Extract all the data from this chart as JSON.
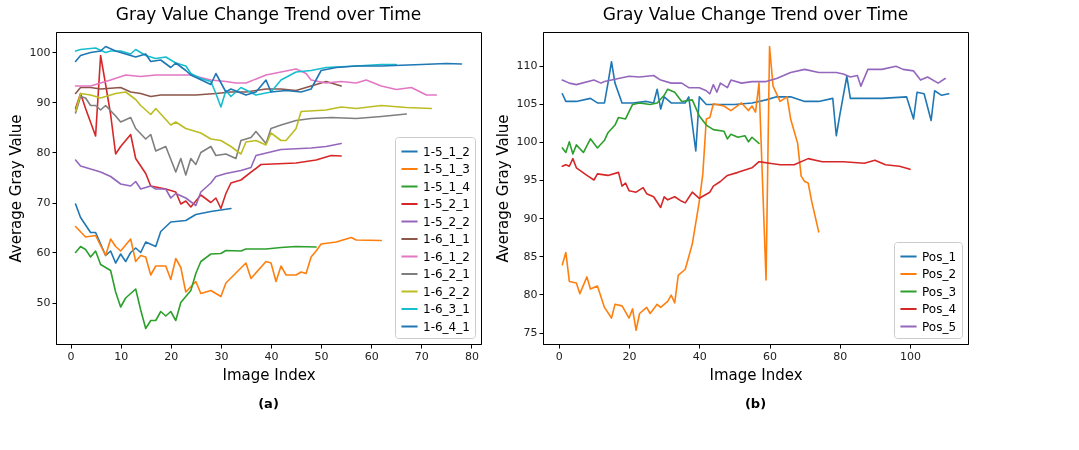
{
  "chart_data": [
    {
      "type": "line",
      "title": "Gray Value Change Trend over Time",
      "xlabel": "Image Index",
      "ylabel": "Average Gray Value",
      "annotations": [
        "(a)"
      ],
      "legend": "bottom right",
      "xlim": [
        -2.9,
        81.9
      ],
      "xticks": [
        0,
        10,
        20,
        30,
        40,
        50,
        60,
        70,
        80
      ],
      "ylim": [
        41.7,
        104.1
      ],
      "yticks": [
        50,
        60,
        70,
        80,
        90,
        100
      ],
      "series": [
        {
          "name": "1-5_1_2",
          "color": "#1f77b4",
          "x": [
            1,
            2,
            4,
            5,
            7,
            8,
            9,
            10,
            11,
            12,
            13,
            14,
            15,
            17,
            18,
            20,
            23,
            25,
            28,
            32
          ],
          "values": [
            69.7,
            67.0,
            64.0,
            64.0,
            59.4,
            60.3,
            57.9,
            59.7,
            58.2,
            60.0,
            60.9,
            60.0,
            62.1,
            61.2,
            64.2,
            66.1,
            66.4,
            67.6,
            68.2,
            68.8
          ]
        },
        {
          "name": "1-5_1_3",
          "color": "#ff7f0e",
          "x": [
            1,
            3,
            5,
            7,
            8,
            9,
            10,
            12,
            13,
            14,
            15,
            16,
            17,
            19,
            20,
            21,
            22,
            23,
            25,
            26,
            28,
            30,
            31,
            35,
            36,
            39,
            40,
            41,
            42,
            43,
            45,
            46,
            47,
            48,
            49,
            50,
            53,
            56,
            57,
            62
          ],
          "values": [
            65.2,
            63.1,
            63.4,
            59.4,
            62.7,
            61.2,
            60.3,
            62.7,
            58.2,
            59.4,
            59.1,
            55.5,
            57.3,
            57.3,
            54.6,
            58.8,
            57.0,
            52.1,
            54.2,
            51.8,
            52.4,
            51.2,
            53.9,
            57.9,
            54.8,
            58.2,
            57.9,
            54.2,
            57.3,
            55.5,
            55.5,
            56.1,
            55.8,
            59.1,
            60.3,
            61.7,
            62.1,
            63.0,
            62.5,
            62.4
          ]
        },
        {
          "name": "1-5_1_4",
          "color": "#2ca02c",
          "x": [
            1,
            2,
            3,
            4,
            5,
            6,
            8,
            9,
            10,
            11,
            13,
            14,
            15,
            16,
            17,
            18,
            19,
            20,
            21,
            22,
            24,
            25,
            26,
            28,
            30,
            31,
            34,
            35,
            39,
            42,
            45,
            49
          ],
          "values": [
            60.0,
            61.2,
            60.6,
            59.1,
            60.3,
            57.6,
            56.4,
            52.1,
            49.1,
            50.9,
            52.7,
            48.5,
            44.8,
            46.4,
            46.4,
            48.2,
            47.3,
            48.2,
            46.4,
            50.0,
            52.4,
            55.8,
            58.2,
            59.7,
            59.8,
            60.4,
            60.3,
            60.7,
            60.7,
            61.0,
            61.2,
            61.1
          ]
        },
        {
          "name": "1-5_2_1",
          "color": "#d62728",
          "x": [
            1,
            2,
            3,
            5,
            6,
            7,
            8,
            9,
            10,
            12,
            13,
            15,
            16,
            19,
            21,
            22,
            23,
            24,
            26,
            28,
            29,
            30,
            31,
            32,
            34,
            38,
            45,
            49,
            52,
            54
          ],
          "values": [
            88.8,
            91.8,
            88.8,
            83.3,
            99.4,
            93.6,
            87.6,
            79.7,
            81.2,
            83.6,
            78.8,
            75.8,
            73.3,
            72.7,
            72.1,
            69.7,
            70.3,
            69.1,
            71.5,
            70.0,
            70.9,
            68.8,
            71.8,
            73.9,
            74.5,
            77.6,
            77.9,
            78.5,
            79.4,
            79.3
          ]
        },
        {
          "name": "1-5_2_2",
          "color": "#9467bd",
          "x": [
            1,
            2,
            4,
            6,
            8,
            10,
            12,
            13,
            14,
            16,
            17,
            19,
            20,
            21,
            23,
            25,
            26,
            28,
            29,
            31,
            34,
            36,
            37,
            42,
            48,
            51,
            54
          ],
          "values": [
            78.5,
            77.3,
            76.7,
            76.1,
            75.2,
            73.7,
            73.3,
            74.2,
            72.7,
            73.3,
            72.7,
            72.7,
            70.9,
            71.8,
            70.9,
            69.4,
            72.1,
            73.9,
            75.2,
            75.8,
            76.4,
            77.0,
            79.4,
            80.6,
            80.9,
            81.2,
            81.8
          ]
        },
        {
          "name": "1-6_1_1",
          "color": "#8c564b",
          "x": [
            1,
            2,
            4,
            6,
            10,
            12,
            14,
            16,
            18,
            20,
            25,
            29,
            32,
            35,
            39,
            42,
            45,
            48,
            51,
            53,
            54
          ],
          "values": [
            91.8,
            93.0,
            93.0,
            92.7,
            93.0,
            92.1,
            91.8,
            91.2,
            91.5,
            91.5,
            91.5,
            91.8,
            92.1,
            92.1,
            92.7,
            92.7,
            92.4,
            93.3,
            94.2,
            93.6,
            93.3
          ]
        },
        {
          "name": "1-6_1_2",
          "color": "#e377c2",
          "x": [
            1,
            4,
            6,
            8,
            11,
            14,
            17,
            21,
            24,
            28,
            31,
            33,
            35,
            39,
            42,
            45,
            47,
            48,
            51,
            54,
            57,
            59,
            62,
            65,
            68,
            71,
            73
          ],
          "values": [
            93.3,
            93.3,
            93.9,
            94.5,
            95.5,
            95.2,
            95.5,
            95.5,
            95.5,
            94.5,
            94.2,
            93.9,
            93.9,
            95.5,
            96.1,
            96.7,
            95.8,
            94.5,
            93.9,
            94.2,
            93.9,
            94.5,
            93.3,
            92.6,
            93.0,
            91.5,
            91.5
          ]
        },
        {
          "name": "1-6_2_1",
          "color": "#7f7f7f",
          "x": [
            1,
            2,
            3,
            4,
            5,
            6,
            7,
            9,
            10,
            12,
            13,
            15,
            16,
            17,
            19,
            21,
            22,
            23,
            24,
            25,
            26,
            28,
            29,
            31,
            33,
            34,
            36,
            37,
            39,
            40,
            42,
            45,
            48,
            52,
            57,
            62,
            67
          ],
          "values": [
            87.9,
            91.2,
            90.9,
            89.4,
            89.4,
            88.5,
            89.4,
            87.3,
            86.1,
            87.0,
            84.8,
            82.7,
            83.6,
            80.3,
            81.2,
            76.1,
            78.8,
            75.5,
            78.8,
            77.6,
            80.0,
            81.2,
            79.4,
            79.7,
            78.8,
            82.4,
            83.0,
            84.2,
            81.8,
            84.8,
            85.5,
            86.4,
            86.8,
            87.0,
            86.8,
            87.2,
            87.7
          ]
        },
        {
          "name": "1-6_2_2",
          "color": "#bcbd22",
          "x": [
            1,
            2,
            4,
            6,
            9,
            11,
            13,
            14,
            16,
            17,
            20,
            21,
            23,
            26,
            28,
            30,
            32,
            34,
            35,
            37,
            39,
            40,
            42,
            43,
            45,
            46,
            51,
            54,
            57,
            62,
            67,
            72
          ],
          "values": [
            88.2,
            91.8,
            91.5,
            90.9,
            91.8,
            92.1,
            90.6,
            89.4,
            87.6,
            88.8,
            85.5,
            86.1,
            84.8,
            83.9,
            82.7,
            82.4,
            81.2,
            79.7,
            82.1,
            82.4,
            81.5,
            83.9,
            82.4,
            82.4,
            84.8,
            88.2,
            88.5,
            89.1,
            88.8,
            89.4,
            89.0,
            88.8
          ]
        },
        {
          "name": "1-6_3_1",
          "color": "#17becf",
          "x": [
            1,
            2,
            5,
            7,
            8,
            10,
            12,
            13,
            15,
            17,
            19,
            21,
            23,
            24,
            26,
            28,
            29,
            30,
            31,
            32,
            34,
            37,
            40,
            42,
            45,
            48,
            51,
            57,
            62,
            65
          ],
          "values": [
            100.3,
            100.6,
            100.9,
            100.0,
            100.3,
            100.3,
            99.7,
            100.6,
            99.4,
            98.8,
            99.1,
            97.9,
            97.3,
            95.8,
            94.8,
            94.2,
            91.8,
            89.1,
            92.4,
            91.2,
            93.0,
            91.5,
            92.1,
            94.5,
            96.1,
            96.4,
            97.0,
            97.3,
            97.6,
            97.6
          ]
        },
        {
          "name": "1-6_4_1",
          "color": "#1f77b4",
          "x": [
            1,
            2,
            4,
            6,
            7,
            9,
            11,
            13,
            15,
            16,
            18,
            20,
            21,
            23,
            24,
            28,
            29,
            31,
            32,
            35,
            37,
            39,
            40,
            43,
            46,
            48,
            50,
            53,
            57,
            62,
            70,
            75,
            78
          ],
          "values": [
            98.2,
            99.4,
            100.0,
            100.3,
            101.2,
            100.3,
            99.7,
            99.1,
            99.7,
            98.2,
            98.5,
            97.0,
            97.9,
            96.4,
            95.5,
            93.6,
            95.8,
            92.1,
            92.7,
            91.5,
            92.1,
            94.5,
            92.1,
            92.4,
            92.1,
            92.7,
            96.4,
            97.0,
            97.3,
            97.3,
            97.6,
            97.8,
            97.7
          ]
        }
      ]
    },
    {
      "type": "line",
      "title": "Gray Value Change Trend over Time",
      "xlabel": "Image Index",
      "ylabel": "Average Gray Value",
      "annotations": [
        "(b)"
      ],
      "legend": "bottom right",
      "xlim": [
        -4.5,
        116.5
      ],
      "xticks": [
        0,
        20,
        40,
        60,
        80,
        100
      ],
      "ylim": [
        73.5,
        114.4
      ],
      "yticks": [
        75,
        80,
        85,
        90,
        95,
        100,
        105,
        110
      ],
      "series": [
        {
          "name": "Pos_1",
          "color": "#1f77b4",
          "x": [
            1,
            2,
            5,
            9,
            11,
            13,
            14,
            15,
            16,
            18,
            21,
            25,
            27,
            28,
            29,
            30,
            32,
            36,
            37,
            39,
            40,
            42,
            50,
            55,
            59,
            62,
            66,
            70,
            74,
            78,
            79,
            80,
            82,
            83,
            92,
            99,
            101,
            102,
            104,
            106,
            107,
            109,
            111
          ],
          "values": [
            106.3,
            105.3,
            105.3,
            105.7,
            105.1,
            105.1,
            107.7,
            110.5,
            107.7,
            105.1,
            105.1,
            105.3,
            105.1,
            106.9,
            104.3,
            105.9,
            105.1,
            105.1,
            105.9,
            98.8,
            105.9,
            104.9,
            104.9,
            105.1,
            105.5,
            105.9,
            105.9,
            105.3,
            105.3,
            105.7,
            100.8,
            103.5,
            108.6,
            105.7,
            105.7,
            105.9,
            103.0,
            106.5,
            106.3,
            102.8,
            106.7,
            106.1,
            106.3
          ]
        },
        {
          "name": "Pos_2",
          "color": "#ff7f0e",
          "x": [
            1,
            2,
            3,
            5,
            6,
            8,
            9,
            11,
            13,
            15,
            16,
            18,
            20,
            21,
            22,
            23,
            25,
            26,
            28,
            29,
            31,
            32,
            33,
            34,
            36,
            38,
            40,
            41,
            42,
            43,
            44,
            47,
            49,
            52,
            54,
            55,
            56,
            57,
            59,
            60,
            61,
            63,
            65,
            66,
            68,
            69,
            70,
            71,
            72,
            74
          ],
          "values": [
            83.9,
            85.5,
            81.7,
            81.5,
            80.1,
            82.3,
            80.7,
            81.1,
            78.3,
            76.9,
            78.7,
            78.5,
            76.9,
            78.1,
            75.3,
            77.5,
            78.3,
            77.5,
            78.7,
            78.3,
            79.1,
            79.9,
            78.9,
            82.5,
            83.3,
            86.6,
            92.2,
            95.8,
            103.0,
            103.2,
            105.0,
            104.7,
            104.1,
            105.1,
            104.1,
            104.7,
            103.9,
            107.7,
            81.9,
            112.5,
            107.3,
            105.3,
            105.9,
            103.0,
            99.8,
            95.5,
            94.8,
            94.6,
            92.2,
            88.2
          ]
        },
        {
          "name": "Pos_3",
          "color": "#2ca02c",
          "x": [
            1,
            2,
            3,
            4,
            5,
            7,
            9,
            11,
            13,
            14,
            16,
            17,
            19,
            21,
            23,
            26,
            28,
            30,
            31,
            33,
            35,
            38,
            40,
            42,
            44,
            47,
            48,
            49,
            51,
            53,
            54,
            55,
            57
          ],
          "values": [
            99.2,
            98.6,
            100.0,
            98.4,
            99.6,
            98.6,
            100.4,
            99.2,
            100.2,
            101.2,
            102.2,
            103.2,
            103.0,
            104.9,
            105.1,
            104.9,
            105.1,
            106.1,
            106.9,
            106.5,
            105.3,
            105.5,
            103.4,
            102.2,
            101.6,
            101.4,
            100.4,
            101.0,
            100.6,
            100.8,
            100.0,
            100.6,
            99.8
          ]
        },
        {
          "name": "Pos_4",
          "color": "#d62728",
          "x": [
            1,
            2,
            3,
            4,
            5,
            8,
            10,
            11,
            14,
            17,
            18,
            19,
            20,
            22,
            24,
            25,
            27,
            29,
            30,
            31,
            33,
            35,
            36,
            38,
            40,
            43,
            44,
            46,
            48,
            51,
            55,
            57,
            60,
            63,
            67,
            71,
            75,
            81,
            87,
            90,
            93,
            97,
            100
          ],
          "values": [
            96.8,
            97.0,
            96.8,
            97.8,
            96.6,
            95.6,
            95.0,
            95.8,
            95.6,
            96.0,
            94.2,
            94.6,
            93.6,
            93.4,
            94.0,
            93.2,
            92.8,
            91.4,
            92.8,
            92.4,
            92.8,
            92.2,
            92.0,
            93.4,
            92.6,
            93.4,
            94.2,
            94.8,
            95.6,
            96.0,
            96.6,
            97.4,
            97.2,
            97.0,
            97.0,
            97.8,
            97.4,
            97.4,
            97.2,
            97.6,
            97.0,
            96.8,
            96.4
          ]
        },
        {
          "name": "Pos_5",
          "color": "#9467bd",
          "x": [
            1,
            3,
            5,
            10,
            12,
            13,
            17,
            20,
            23,
            27,
            29,
            32,
            35,
            37,
            40,
            42,
            43,
            44,
            45,
            46,
            48,
            49,
            52,
            55,
            59,
            62,
            66,
            70,
            74,
            79,
            81,
            83,
            85,
            86,
            88,
            92,
            96,
            98,
            101,
            103,
            105,
            108,
            110
          ],
          "values": [
            108.1,
            107.7,
            107.5,
            108.1,
            107.7,
            107.9,
            108.3,
            108.6,
            108.5,
            108.7,
            108.1,
            107.7,
            107.7,
            107.1,
            107.1,
            106.7,
            106.3,
            107.5,
            106.5,
            107.7,
            107.1,
            108.1,
            107.7,
            107.9,
            107.9,
            108.3,
            109.1,
            109.5,
            109.1,
            109.1,
            108.9,
            108.5,
            108.7,
            107.3,
            109.5,
            109.5,
            109.9,
            109.5,
            109.3,
            108.1,
            108.5,
            107.7,
            108.3
          ]
        }
      ]
    }
  ]
}
